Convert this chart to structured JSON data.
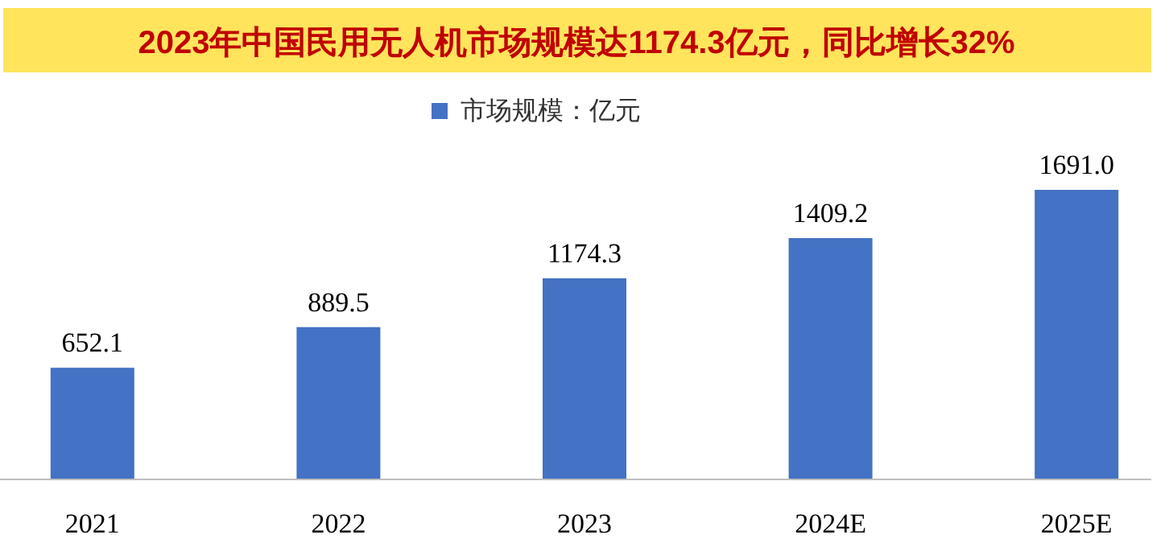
{
  "chart_data": {
    "type": "bar",
    "title": "2023年中国民用无人机市场规模达1174.3亿元，同比增长32%",
    "categories": [
      "2021",
      "2022",
      "2023",
      "2024E",
      "2025E"
    ],
    "series": [
      {
        "name": "市场规模：亿元",
        "color": "#4472c4",
        "values": [
          652.1,
          889.5,
          1174.3,
          1409.2,
          1691.0
        ],
        "value_labels": [
          "652.1",
          "889.5",
          "1174.3",
          "1409.2",
          "1691.0"
        ]
      }
    ],
    "legend": "top"
  }
}
